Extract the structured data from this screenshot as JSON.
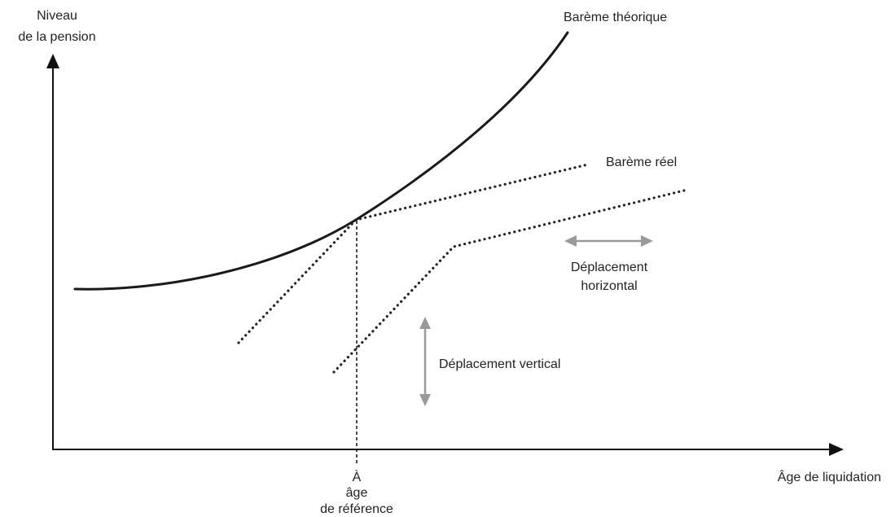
{
  "axes": {
    "y_label_line1": "Niveau",
    "y_label_line2": "de la pension",
    "x_label": "Âge de liquidation"
  },
  "curves": {
    "theoretical": "Barème théorique",
    "real": "Barème réel"
  },
  "reference_age": {
    "line1": "À",
    "line2": "âge",
    "line3": "de référence"
  },
  "shifts": {
    "horizontal_line1": "Déplacement",
    "horizontal_line2": "horizontal",
    "vertical": "Déplacement vertical"
  },
  "colors": {
    "ink": "#1a1a1a",
    "arrow_grey": "#9a9a9a",
    "background": "#ffffff"
  }
}
